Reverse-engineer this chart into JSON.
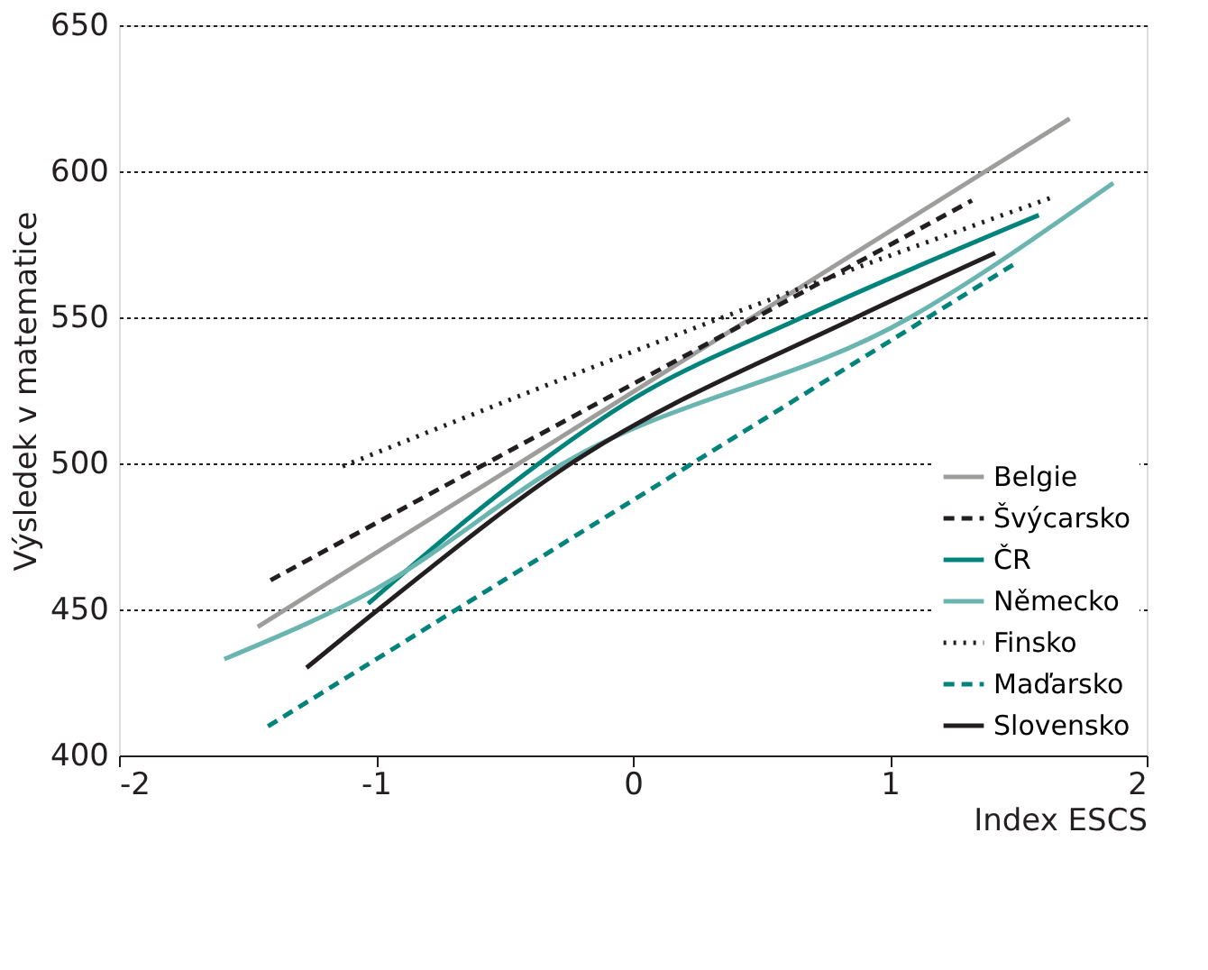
{
  "chart_data": {
    "type": "line",
    "xlabel": "Index ESCS",
    "ylabel": "Výsledek v matematice",
    "xlim": [
      -2,
      2
    ],
    "xticks": [
      -2,
      -1,
      0,
      1,
      2
    ],
    "ylim": [
      400,
      650
    ],
    "yticks": [
      400,
      450,
      500,
      550,
      600,
      650
    ],
    "grid": "y",
    "legend": "bottom right",
    "series": [
      {
        "name": "Belgie",
        "color": "#9d9d9c",
        "line_style": "solid",
        "x": [
          -1.46,
          1.7
        ],
        "values": [
          444,
          618
        ]
      },
      {
        "name": "Švýcarsko",
        "color": "#231f20",
        "line_style": "dashed",
        "x": [
          -1.41,
          1.32
        ],
        "values": [
          460,
          590
        ]
      },
      {
        "name": "ČR",
        "color": "#00837a",
        "line_style": "solid",
        "x": [
          -1.03,
          -0.5,
          0,
          0.66,
          1.58
        ],
        "values": [
          452,
          491,
          522,
          550,
          585
        ]
      },
      {
        "name": "Německo",
        "color": "#6bb5b0",
        "line_style": "solid",
        "x": [
          -1.59,
          -1.0,
          -0.27,
          1.08,
          1.87
        ],
        "values": [
          433,
          457,
          500,
          550,
          596
        ]
      },
      {
        "name": "Finsko",
        "color": "#231f20",
        "line_style": "dotted",
        "x": [
          -1.13,
          0.35,
          1.63
        ],
        "values": [
          499,
          550,
          591
        ]
      },
      {
        "name": "Maďarsko",
        "color": "#00837a",
        "line_style": "dashed",
        "x": [
          -1.42,
          1.48
        ],
        "values": [
          410,
          568
        ]
      },
      {
        "name": "Slovensko",
        "color": "#231f20",
        "line_style": "solid",
        "x": [
          -1.27,
          -0.99,
          -0.24,
          0.87,
          1.41
        ],
        "values": [
          430,
          450,
          500,
          550,
          572
        ]
      }
    ]
  }
}
